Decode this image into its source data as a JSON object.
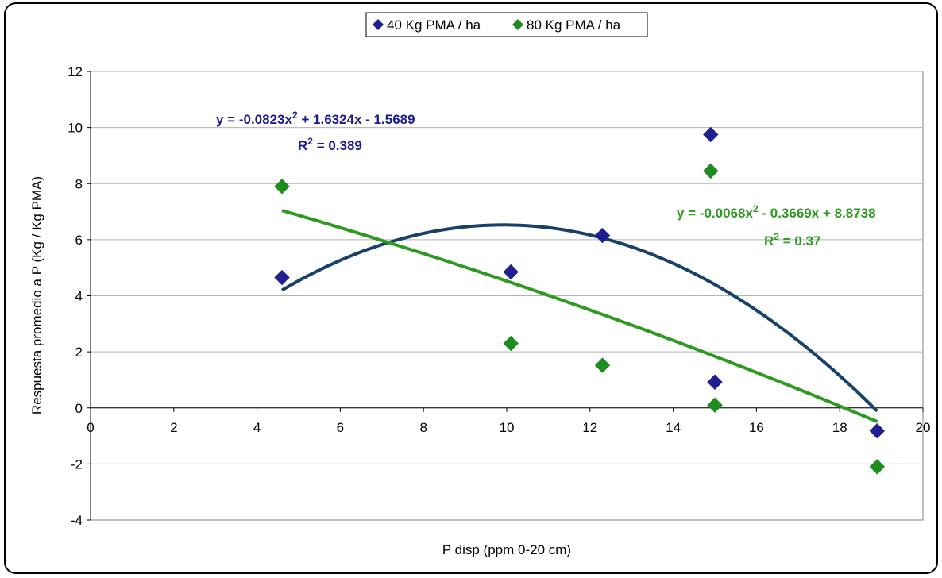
{
  "chart_data": {
    "type": "scatter",
    "title": "",
    "xlabel": "P disp (ppm 0-20 cm)",
    "ylabel": "Respuesta promedio a P (Kg / Kg PMA)",
    "xlim": [
      0,
      20
    ],
    "ylim": [
      -4,
      12
    ],
    "x_ticks": [
      0,
      2,
      4,
      6,
      8,
      10,
      12,
      14,
      16,
      18,
      20
    ],
    "y_ticks": [
      -4,
      -2,
      0,
      2,
      4,
      6,
      8,
      10,
      12
    ],
    "x_tick_labels": [
      "0",
      "2",
      "4",
      "6",
      "8",
      "10",
      "12",
      "14",
      "16",
      "18",
      "20"
    ],
    "y_tick_labels": [
      "-4",
      "-2",
      "0",
      "2",
      "4",
      "6",
      "8",
      "10",
      "12"
    ],
    "grid": "horizontal",
    "legend_position": "top-center",
    "series": [
      {
        "name": "40 Kg PMA / ha",
        "color": "#1f1f8f",
        "marker": "diamond",
        "points": [
          {
            "x": 4.6,
            "y": 4.65
          },
          {
            "x": 10.1,
            "y": 4.85
          },
          {
            "x": 12.3,
            "y": 6.15
          },
          {
            "x": 14.9,
            "y": 9.75
          },
          {
            "x": 15.0,
            "y": 0.92
          },
          {
            "x": 18.9,
            "y": -0.82
          }
        ],
        "trendline": {
          "type": "polynomial",
          "coefficients": [
            -0.0823,
            1.6324,
            -1.5689
          ],
          "x_range": [
            4.6,
            18.9
          ],
          "color": "#17406b",
          "equation": "y = -0.0823x",
          "equation_exp": "2",
          "equation_tail": " + 1.6324x - 1.5689",
          "r2_prefix": "R",
          "r2_exp": "2",
          "r2_tail": " = 0.389"
        }
      },
      {
        "name": "80 Kg PMA / ha",
        "color": "#1e8c1e",
        "marker": "diamond",
        "points": [
          {
            "x": 4.6,
            "y": 7.9
          },
          {
            "x": 10.1,
            "y": 2.3
          },
          {
            "x": 12.3,
            "y": 1.52
          },
          {
            "x": 14.9,
            "y": 8.45
          },
          {
            "x": 15.0,
            "y": 0.1
          },
          {
            "x": 18.9,
            "y": -2.1
          }
        ],
        "trendline": {
          "type": "polynomial",
          "coefficients": [
            -0.0068,
            -0.3669,
            8.8738
          ],
          "x_range": [
            4.6,
            18.9
          ],
          "color": "#2e9a22",
          "equation": "y = -0.0068x",
          "equation_exp": "2",
          "equation_tail": " - 0.3669x + 8.8738",
          "r2_prefix": "R",
          "r2_exp": "2",
          "r2_tail": " = 0.37"
        }
      }
    ]
  }
}
